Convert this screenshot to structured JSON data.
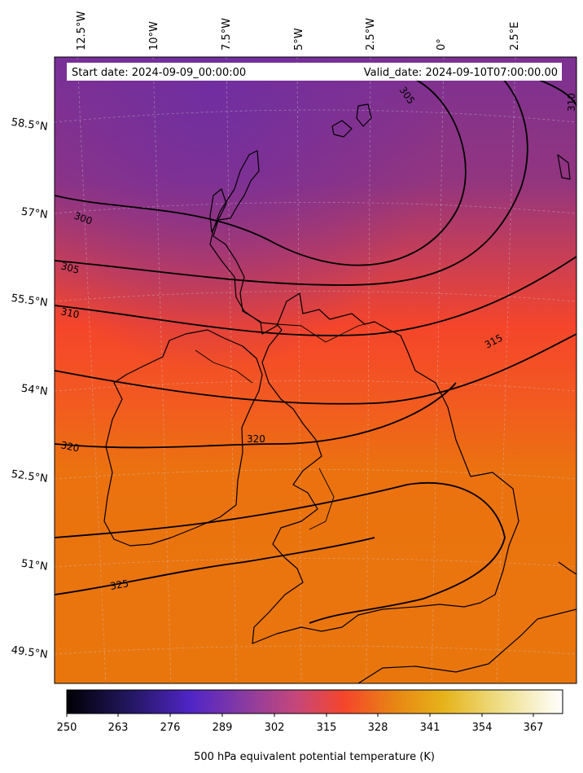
{
  "header": {
    "start_date": "Start date: 2024-09-09_00:00:00",
    "valid_date": "Valid_date: 2024-09-10T07:00:00.00"
  },
  "map": {
    "lon_labels": [
      "12.5°W",
      "10°W",
      "7.5°W",
      "5°W",
      "2.5°W",
      "0°",
      "2.5°E"
    ],
    "lat_labels": [
      "58.5°N",
      "57°N",
      "55.5°N",
      "54°N",
      "52.5°N",
      "51°N",
      "49.5°N"
    ],
    "contour_labels": [
      "300",
      "305",
      "310",
      "315",
      "320",
      "325",
      "305",
      "310"
    ]
  },
  "colorbar": {
    "ticks": [
      "250",
      "263",
      "276",
      "289",
      "302",
      "315",
      "328",
      "341",
      "354",
      "367"
    ],
    "label": "500 hPa equivalent potential temperature (K)",
    "colors": [
      "#000004",
      "#2a1a6e",
      "#5b2bc8",
      "#8a3a9e",
      "#c04880",
      "#f5472b",
      "#e5880a",
      "#e7b51a",
      "#f1e48c",
      "#fffff2"
    ]
  },
  "colors": {
    "north": "#7e3290",
    "mid": "#d8433e",
    "red": "#f6452a",
    "south": "#e8760f"
  }
}
